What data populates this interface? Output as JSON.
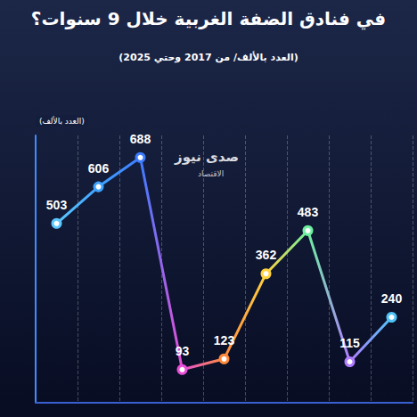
{
  "chart_data": {
    "type": "line",
    "title": "في فنادق الضفة الغربية خلال 9 سنوات؟",
    "subtitle": "(العدد بالألف/ من 2017 وحتي 2025)",
    "y_label": "(العدد بالألف)",
    "annotations": [
      "صدى نيوز",
      "الاقتصاد"
    ],
    "categories": [
      null,
      null,
      null,
      null,
      null,
      null,
      null,
      null,
      null
    ],
    "values": [
      503,
      606,
      688,
      93,
      123,
      362,
      483,
      115,
      240
    ],
    "colors": [
      "#5cc8ff",
      "#3fa2ff",
      "#3d7cff",
      "#e94fd8",
      "#ff8a3d",
      "#ffd23f",
      "#6ef0a0",
      "#b07cff",
      "#4fc3f7"
    ],
    "ylim": [
      0,
      750
    ],
    "grid": true,
    "data_labels": true,
    "tick_labels": false,
    "marker": "circle",
    "line_style": "solid"
  }
}
